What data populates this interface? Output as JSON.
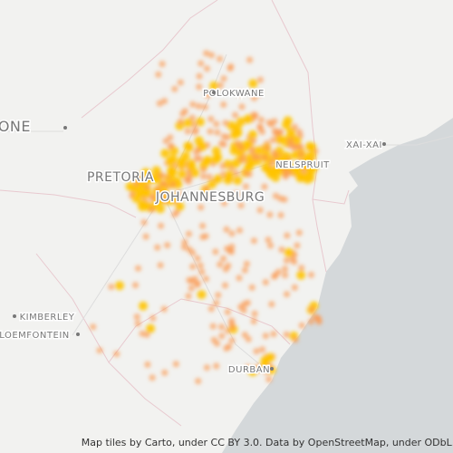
{
  "map": {
    "places": [
      {
        "label": "ABORONE"
      },
      {
        "label": "POLOKWANE"
      },
      {
        "label": "PRETORIA"
      },
      {
        "label": "JOHANNESBURG"
      },
      {
        "label": "NELSPRUIT"
      },
      {
        "label": "XAI-XAI"
      },
      {
        "label": "KIMBERLEY"
      },
      {
        "label": "LOEMFONTEIN"
      },
      {
        "label": "DURBAN"
      }
    ],
    "attribution": "Map tiles by Carto, under CC BY 3.0. Data by OpenStreetMap, under ODbL."
  }
}
